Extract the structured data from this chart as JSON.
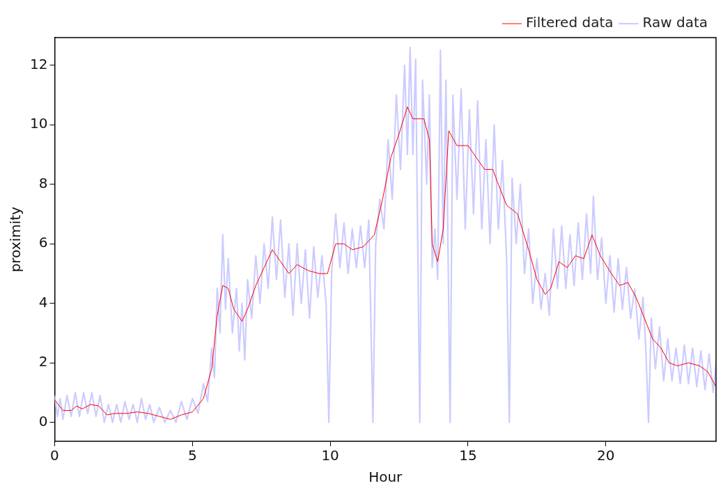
{
  "chart_data": {
    "type": "line",
    "xlabel": "Hour",
    "ylabel": "proximity",
    "xlim": [
      0,
      24
    ],
    "xticks": [
      0,
      5,
      10,
      15,
      20
    ],
    "ylim": [
      -0.64,
      12.93
    ],
    "yticks": [
      0,
      2,
      4,
      6,
      8,
      10,
      12
    ],
    "grid": false,
    "legend": "top right",
    "series": [
      {
        "name": "Raw data",
        "color": "#ccccff",
        "x": [
          0,
          0.1,
          0.2,
          0.3,
          0.45,
          0.6,
          0.75,
          0.9,
          1.05,
          1.2,
          1.35,
          1.5,
          1.65,
          1.8,
          1.95,
          2.1,
          2.25,
          2.4,
          2.55,
          2.7,
          2.85,
          3.0,
          3.15,
          3.3,
          3.45,
          3.6,
          3.8,
          4.0,
          4.2,
          4.4,
          4.6,
          4.8,
          5.0,
          5.2,
          5.4,
          5.55,
          5.7,
          5.8,
          5.9,
          6.0,
          6.1,
          6.2,
          6.3,
          6.45,
          6.6,
          6.7,
          6.8,
          6.9,
          7.0,
          7.15,
          7.3,
          7.45,
          7.6,
          7.75,
          7.9,
          8.05,
          8.2,
          8.35,
          8.5,
          8.65,
          8.8,
          8.95,
          9.1,
          9.25,
          9.4,
          9.55,
          9.7,
          9.85,
          9.95,
          10.05,
          10.2,
          10.35,
          10.5,
          10.65,
          10.8,
          10.95,
          11.1,
          11.25,
          11.4,
          11.55,
          11.65,
          11.8,
          11.95,
          12.1,
          12.25,
          12.4,
          12.55,
          12.7,
          12.8,
          12.9,
          13.0,
          13.1,
          13.25,
          13.35,
          13.5,
          13.6,
          13.7,
          13.8,
          13.9,
          14.0,
          14.1,
          14.2,
          14.35,
          14.45,
          14.6,
          14.75,
          14.9,
          15.05,
          15.2,
          15.35,
          15.5,
          15.65,
          15.8,
          15.95,
          16.1,
          16.25,
          16.4,
          16.5,
          16.6,
          16.75,
          16.9,
          17.05,
          17.2,
          17.35,
          17.5,
          17.65,
          17.8,
          17.95,
          18.1,
          18.25,
          18.4,
          18.55,
          18.7,
          18.85,
          19.0,
          19.15,
          19.3,
          19.45,
          19.55,
          19.7,
          19.85,
          20.0,
          20.15,
          20.3,
          20.45,
          20.6,
          20.75,
          20.9,
          21.05,
          21.2,
          21.35,
          21.45,
          21.55,
          21.65,
          21.8,
          21.95,
          22.1,
          22.25,
          22.4,
          22.55,
          22.7,
          22.85,
          23.0,
          23.15,
          23.3,
          23.45,
          23.6,
          23.75,
          23.9,
          24.0
        ],
        "values": [
          0.9,
          0.2,
          0.8,
          0.1,
          0.9,
          0.2,
          1.0,
          0.2,
          1.0,
          0.3,
          1.0,
          0.2,
          0.9,
          0.0,
          0.6,
          0.0,
          0.6,
          0.0,
          0.7,
          0.1,
          0.6,
          0.0,
          0.8,
          0.1,
          0.6,
          0.0,
          0.5,
          0.0,
          0.4,
          0.0,
          0.7,
          0.1,
          0.8,
          0.3,
          1.3,
          0.7,
          2.5,
          1.5,
          4.5,
          3.0,
          6.3,
          3.8,
          5.5,
          3.0,
          4.5,
          2.4,
          4.0,
          2.1,
          4.8,
          3.5,
          5.6,
          4.0,
          6.0,
          4.5,
          6.9,
          4.8,
          6.8,
          4.2,
          6.0,
          3.6,
          6.0,
          4.0,
          5.8,
          3.5,
          5.9,
          4.2,
          5.6,
          4.0,
          0.0,
          5.0,
          7.0,
          5.2,
          6.7,
          5.0,
          6.5,
          5.2,
          6.6,
          5.2,
          6.8,
          0.0,
          6.0,
          7.5,
          6.5,
          9.5,
          7.5,
          11.0,
          8.5,
          12.0,
          9.0,
          12.6,
          9.0,
          12.2,
          0.0,
          11.5,
          8.0,
          11.0,
          5.2,
          6.5,
          4.8,
          12.5,
          6.0,
          11.5,
          0.0,
          11.0,
          7.5,
          11.2,
          6.5,
          10.5,
          7.0,
          10.8,
          6.5,
          9.5,
          6.0,
          10.0,
          6.5,
          8.8,
          5.5,
          0.0,
          8.2,
          6.0,
          8.0,
          5.0,
          6.5,
          4.0,
          5.5,
          3.8,
          5.0,
          3.6,
          6.5,
          4.5,
          6.6,
          4.5,
          6.3,
          4.6,
          6.7,
          4.8,
          7.0,
          5.0,
          7.6,
          4.8,
          6.2,
          4.0,
          5.6,
          3.7,
          5.5,
          3.8,
          5.2,
          3.5,
          4.5,
          2.8,
          4.2,
          2.5,
          0.0,
          3.5,
          1.8,
          3.2,
          1.4,
          2.8,
          1.4,
          2.5,
          1.3,
          2.6,
          1.3,
          2.5,
          1.2,
          2.4,
          1.1,
          2.3,
          1.0,
          2.0
        ]
      },
      {
        "name": "Filtered data",
        "color": "#ff0000",
        "x": [
          0,
          0.3,
          0.6,
          0.8,
          1.0,
          1.3,
          1.6,
          1.9,
          2.2,
          2.6,
          3.0,
          3.4,
          3.8,
          4.2,
          4.6,
          5.0,
          5.4,
          5.7,
          5.9,
          6.1,
          6.3,
          6.5,
          6.8,
          7.0,
          7.3,
          7.6,
          7.9,
          8.2,
          8.5,
          8.8,
          9.2,
          9.6,
          9.9,
          10.2,
          10.5,
          10.8,
          11.2,
          11.6,
          11.9,
          12.2,
          12.5,
          12.8,
          13.0,
          13.4,
          13.6,
          13.7,
          13.9,
          14.1,
          14.3,
          14.6,
          15.0,
          15.3,
          15.6,
          15.9,
          16.1,
          16.4,
          16.8,
          17.2,
          17.5,
          17.8,
          18.0,
          18.3,
          18.6,
          18.9,
          19.2,
          19.5,
          19.8,
          20.2,
          20.5,
          20.8,
          21.1,
          21.4,
          21.7,
          22.0,
          22.3,
          22.6,
          23.0,
          23.4,
          23.7,
          24.0
        ],
        "values": [
          0.75,
          0.4,
          0.4,
          0.55,
          0.45,
          0.6,
          0.55,
          0.25,
          0.3,
          0.3,
          0.35,
          0.3,
          0.2,
          0.1,
          0.25,
          0.35,
          0.8,
          1.8,
          3.6,
          4.6,
          4.5,
          3.8,
          3.4,
          3.8,
          4.6,
          5.2,
          5.8,
          5.4,
          5.0,
          5.3,
          5.1,
          5.0,
          5.0,
          6.0,
          6.0,
          5.8,
          5.9,
          6.3,
          7.5,
          8.9,
          9.7,
          10.6,
          10.2,
          10.2,
          9.5,
          6.0,
          5.4,
          6.5,
          9.8,
          9.3,
          9.3,
          8.9,
          8.5,
          8.5,
          8.0,
          7.3,
          7.0,
          5.8,
          4.8,
          4.3,
          4.5,
          5.4,
          5.2,
          5.6,
          5.5,
          6.3,
          5.6,
          5.0,
          4.6,
          4.7,
          4.2,
          3.5,
          2.8,
          2.5,
          2.0,
          1.9,
          2.0,
          1.9,
          1.7,
          1.2
        ]
      }
    ]
  }
}
